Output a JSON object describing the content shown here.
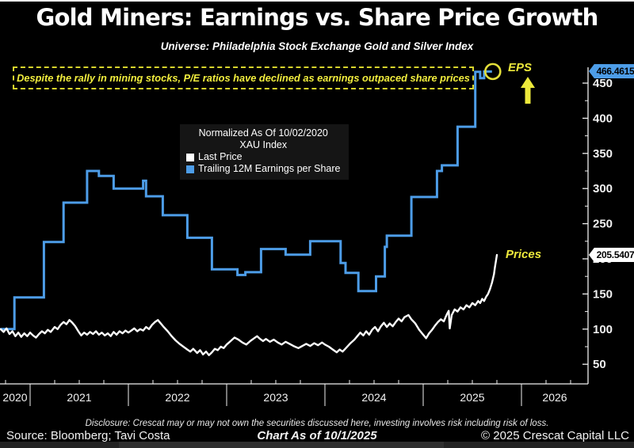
{
  "header": {
    "title": "Gold Miners: Earnings vs. Share Price Growth",
    "subtitle": "Universe: Philadelphia Stock Exchange Gold and Silver Index"
  },
  "annotation": {
    "text": "Despite the rally in mining stocks, P/E ratios have declined as earnings outpaced share prices"
  },
  "legend": {
    "line1": "Normalized As Of 10/02/2020",
    "line2": "XAU Index",
    "items": [
      {
        "label": "Last Price",
        "color": "#FFFFFF"
      },
      {
        "label": "Trailing 12M Earnings per Share",
        "color": "#4D9DE8"
      }
    ]
  },
  "labels": {
    "eps": "EPS",
    "prices": "Prices"
  },
  "tags": {
    "eps": "466.4615",
    "price": "205.5407"
  },
  "footer": {
    "disclosure": "Disclosure: Crescat may or may not own the securities discussed here, investing involves risk including risk of loss.",
    "source": "Source: Bloomberg; Tavi Costa",
    "chart_as_of": "Chart As of 10/1/2025",
    "copyright": "© 2025 Crescat Capital LLC"
  },
  "colors": {
    "background": "#000000",
    "eps_blue": "#4D9DE8",
    "price_white": "#FFFFFF",
    "annotation_yellow": "#EDE93B",
    "axis": "#F0F0F0"
  },
  "chart_data": {
    "type": "line",
    "title": "Gold Miners: Earnings vs. Share Price Growth",
    "normalized_base": "Normalized As Of 10/02/2020",
    "index": "XAU Index",
    "x_axis": {
      "start": 2020.7,
      "end": 2026.66,
      "year_labels": [
        "2020",
        "2021",
        "2022",
        "2023",
        "2024",
        "2025",
        "2026"
      ],
      "minor_tick": "quarterly"
    },
    "y_axis": {
      "side": "right",
      "ticks": [
        50,
        100,
        150,
        200,
        250,
        300,
        350,
        400,
        450
      ],
      "minor_step": 25,
      "grid": false
    },
    "series": [
      {
        "name": "Trailing 12M Earnings per Share",
        "type": "step",
        "color": "#4D9DE8",
        "last_value": 466.4615,
        "end_t": 2025.7,
        "points": [
          [
            2020.7,
            100
          ],
          [
            2020.84,
            145
          ],
          [
            2021.14,
            224
          ],
          [
            2021.34,
            280
          ],
          [
            2021.58,
            325
          ],
          [
            2021.7,
            318
          ],
          [
            2021.85,
            300
          ],
          [
            2022.15,
            311
          ],
          [
            2022.18,
            289
          ],
          [
            2022.35,
            262
          ],
          [
            2022.6,
            230
          ],
          [
            2022.85,
            185
          ],
          [
            2023.11,
            177
          ],
          [
            2023.19,
            181
          ],
          [
            2023.35,
            214
          ],
          [
            2023.6,
            206
          ],
          [
            2023.85,
            225
          ],
          [
            2024.16,
            194
          ],
          [
            2024.21,
            180
          ],
          [
            2024.34,
            154
          ],
          [
            2024.52,
            175
          ],
          [
            2024.61,
            217
          ],
          [
            2024.63,
            233
          ],
          [
            2024.88,
            288
          ],
          [
            2025.14,
            325
          ],
          [
            2025.19,
            333
          ],
          [
            2025.35,
            388
          ],
          [
            2025.53,
            466
          ],
          [
            2025.58,
            457
          ],
          [
            2025.62,
            466.4615
          ]
        ]
      },
      {
        "name": "Last Price",
        "type": "line",
        "color": "#FFFFFF",
        "last_value": 205.5407,
        "points": [
          [
            2020.7,
            100
          ],
          [
            2020.73,
            96
          ],
          [
            2020.76,
            101
          ],
          [
            2020.79,
            93
          ],
          [
            2020.82,
            97
          ],
          [
            2020.85,
            90
          ],
          [
            2020.88,
            95
          ],
          [
            2020.91,
            89
          ],
          [
            2020.94,
            94
          ],
          [
            2020.97,
            90
          ],
          [
            2021.0,
            95
          ],
          [
            2021.03,
            91
          ],
          [
            2021.06,
            88
          ],
          [
            2021.09,
            93
          ],
          [
            2021.12,
            97
          ],
          [
            2021.15,
            94
          ],
          [
            2021.18,
            99
          ],
          [
            2021.21,
            96
          ],
          [
            2021.25,
            103
          ],
          [
            2021.28,
            100
          ],
          [
            2021.31,
            106
          ],
          [
            2021.34,
            110
          ],
          [
            2021.37,
            107
          ],
          [
            2021.4,
            113
          ],
          [
            2021.43,
            109
          ],
          [
            2021.46,
            104
          ],
          [
            2021.49,
            97
          ],
          [
            2021.52,
            91
          ],
          [
            2021.55,
            95
          ],
          [
            2021.58,
            92
          ],
          [
            2021.61,
            96
          ],
          [
            2021.64,
            93
          ],
          [
            2021.67,
            97
          ],
          [
            2021.7,
            92
          ],
          [
            2021.73,
            95
          ],
          [
            2021.76,
            91
          ],
          [
            2021.79,
            94
          ],
          [
            2021.82,
            90
          ],
          [
            2021.85,
            96
          ],
          [
            2021.88,
            92
          ],
          [
            2021.91,
            97
          ],
          [
            2021.94,
            94
          ],
          [
            2021.97,
            98
          ],
          [
            2022.0,
            95
          ],
          [
            2022.03,
            98
          ],
          [
            2022.06,
            101
          ],
          [
            2022.09,
            97
          ],
          [
            2022.12,
            100
          ],
          [
            2022.15,
            98
          ],
          [
            2022.18,
            103
          ],
          [
            2022.21,
            100
          ],
          [
            2022.24,
            106
          ],
          [
            2022.27,
            110
          ],
          [
            2022.3,
            113
          ],
          [
            2022.33,
            108
          ],
          [
            2022.36,
            103
          ],
          [
            2022.4,
            97
          ],
          [
            2022.44,
            90
          ],
          [
            2022.48,
            84
          ],
          [
            2022.52,
            79
          ],
          [
            2022.56,
            75
          ],
          [
            2022.6,
            71
          ],
          [
            2022.63,
            68
          ],
          [
            2022.66,
            72
          ],
          [
            2022.7,
            66
          ],
          [
            2022.73,
            70
          ],
          [
            2022.76,
            64
          ],
          [
            2022.79,
            68
          ],
          [
            2022.82,
            63
          ],
          [
            2022.85,
            67
          ],
          [
            2022.88,
            72
          ],
          [
            2022.91,
            70
          ],
          [
            2022.94,
            75
          ],
          [
            2022.97,
            73
          ],
          [
            2023.0,
            78
          ],
          [
            2023.04,
            83
          ],
          [
            2023.08,
            88
          ],
          [
            2023.12,
            85
          ],
          [
            2023.16,
            81
          ],
          [
            2023.2,
            78
          ],
          [
            2023.24,
            83
          ],
          [
            2023.28,
            87
          ],
          [
            2023.31,
            90
          ],
          [
            2023.34,
            86
          ],
          [
            2023.37,
            83
          ],
          [
            2023.4,
            86
          ],
          [
            2023.44,
            82
          ],
          [
            2023.48,
            85
          ],
          [
            2023.52,
            81
          ],
          [
            2023.56,
            78
          ],
          [
            2023.6,
            82
          ],
          [
            2023.64,
            79
          ],
          [
            2023.68,
            76
          ],
          [
            2023.73,
            73
          ],
          [
            2023.77,
            76
          ],
          [
            2023.81,
            79
          ],
          [
            2023.85,
            76
          ],
          [
            2023.89,
            80
          ],
          [
            2023.93,
            77
          ],
          [
            2023.97,
            81
          ],
          [
            2024.0,
            78
          ],
          [
            2024.04,
            75
          ],
          [
            2024.08,
            71
          ],
          [
            2024.12,
            67
          ],
          [
            2024.15,
            71
          ],
          [
            2024.18,
            68
          ],
          [
            2024.22,
            74
          ],
          [
            2024.26,
            80
          ],
          [
            2024.3,
            85
          ],
          [
            2024.33,
            90
          ],
          [
            2024.36,
            95
          ],
          [
            2024.39,
            91
          ],
          [
            2024.42,
            97
          ],
          [
            2024.45,
            92
          ],
          [
            2024.48,
            99
          ],
          [
            2024.51,
            103
          ],
          [
            2024.54,
            97
          ],
          [
            2024.57,
            104
          ],
          [
            2024.6,
            109
          ],
          [
            2024.63,
            103
          ],
          [
            2024.66,
            108
          ],
          [
            2024.69,
            104
          ],
          [
            2024.72,
            110
          ],
          [
            2024.75,
            115
          ],
          [
            2024.78,
            111
          ],
          [
            2024.81,
            117
          ],
          [
            2024.85,
            120
          ],
          [
            2024.88,
            114
          ],
          [
            2024.92,
            108
          ],
          [
            2024.96,
            99
          ],
          [
            2025.0,
            92
          ],
          [
            2025.03,
            87
          ],
          [
            2025.06,
            94
          ],
          [
            2025.09,
            99
          ],
          [
            2025.12,
            105
          ],
          [
            2025.15,
            110
          ],
          [
            2025.18,
            114
          ],
          [
            2025.21,
            111
          ],
          [
            2025.24,
            121
          ],
          [
            2025.26,
            126
          ],
          [
            2025.27,
            101
          ],
          [
            2025.29,
            120
          ],
          [
            2025.32,
            128
          ],
          [
            2025.35,
            125
          ],
          [
            2025.38,
            131
          ],
          [
            2025.41,
            128
          ],
          [
            2025.44,
            134
          ],
          [
            2025.47,
            131
          ],
          [
            2025.5,
            137
          ],
          [
            2025.53,
            134
          ],
          [
            2025.56,
            140
          ],
          [
            2025.58,
            137
          ],
          [
            2025.6,
            143
          ],
          [
            2025.62,
            140
          ],
          [
            2025.64,
            146
          ],
          [
            2025.66,
            150
          ],
          [
            2025.68,
            157
          ],
          [
            2025.7,
            166
          ],
          [
            2025.72,
            178
          ],
          [
            2025.73,
            188
          ],
          [
            2025.74,
            197
          ],
          [
            2025.75,
            205.5407
          ]
        ]
      }
    ]
  }
}
